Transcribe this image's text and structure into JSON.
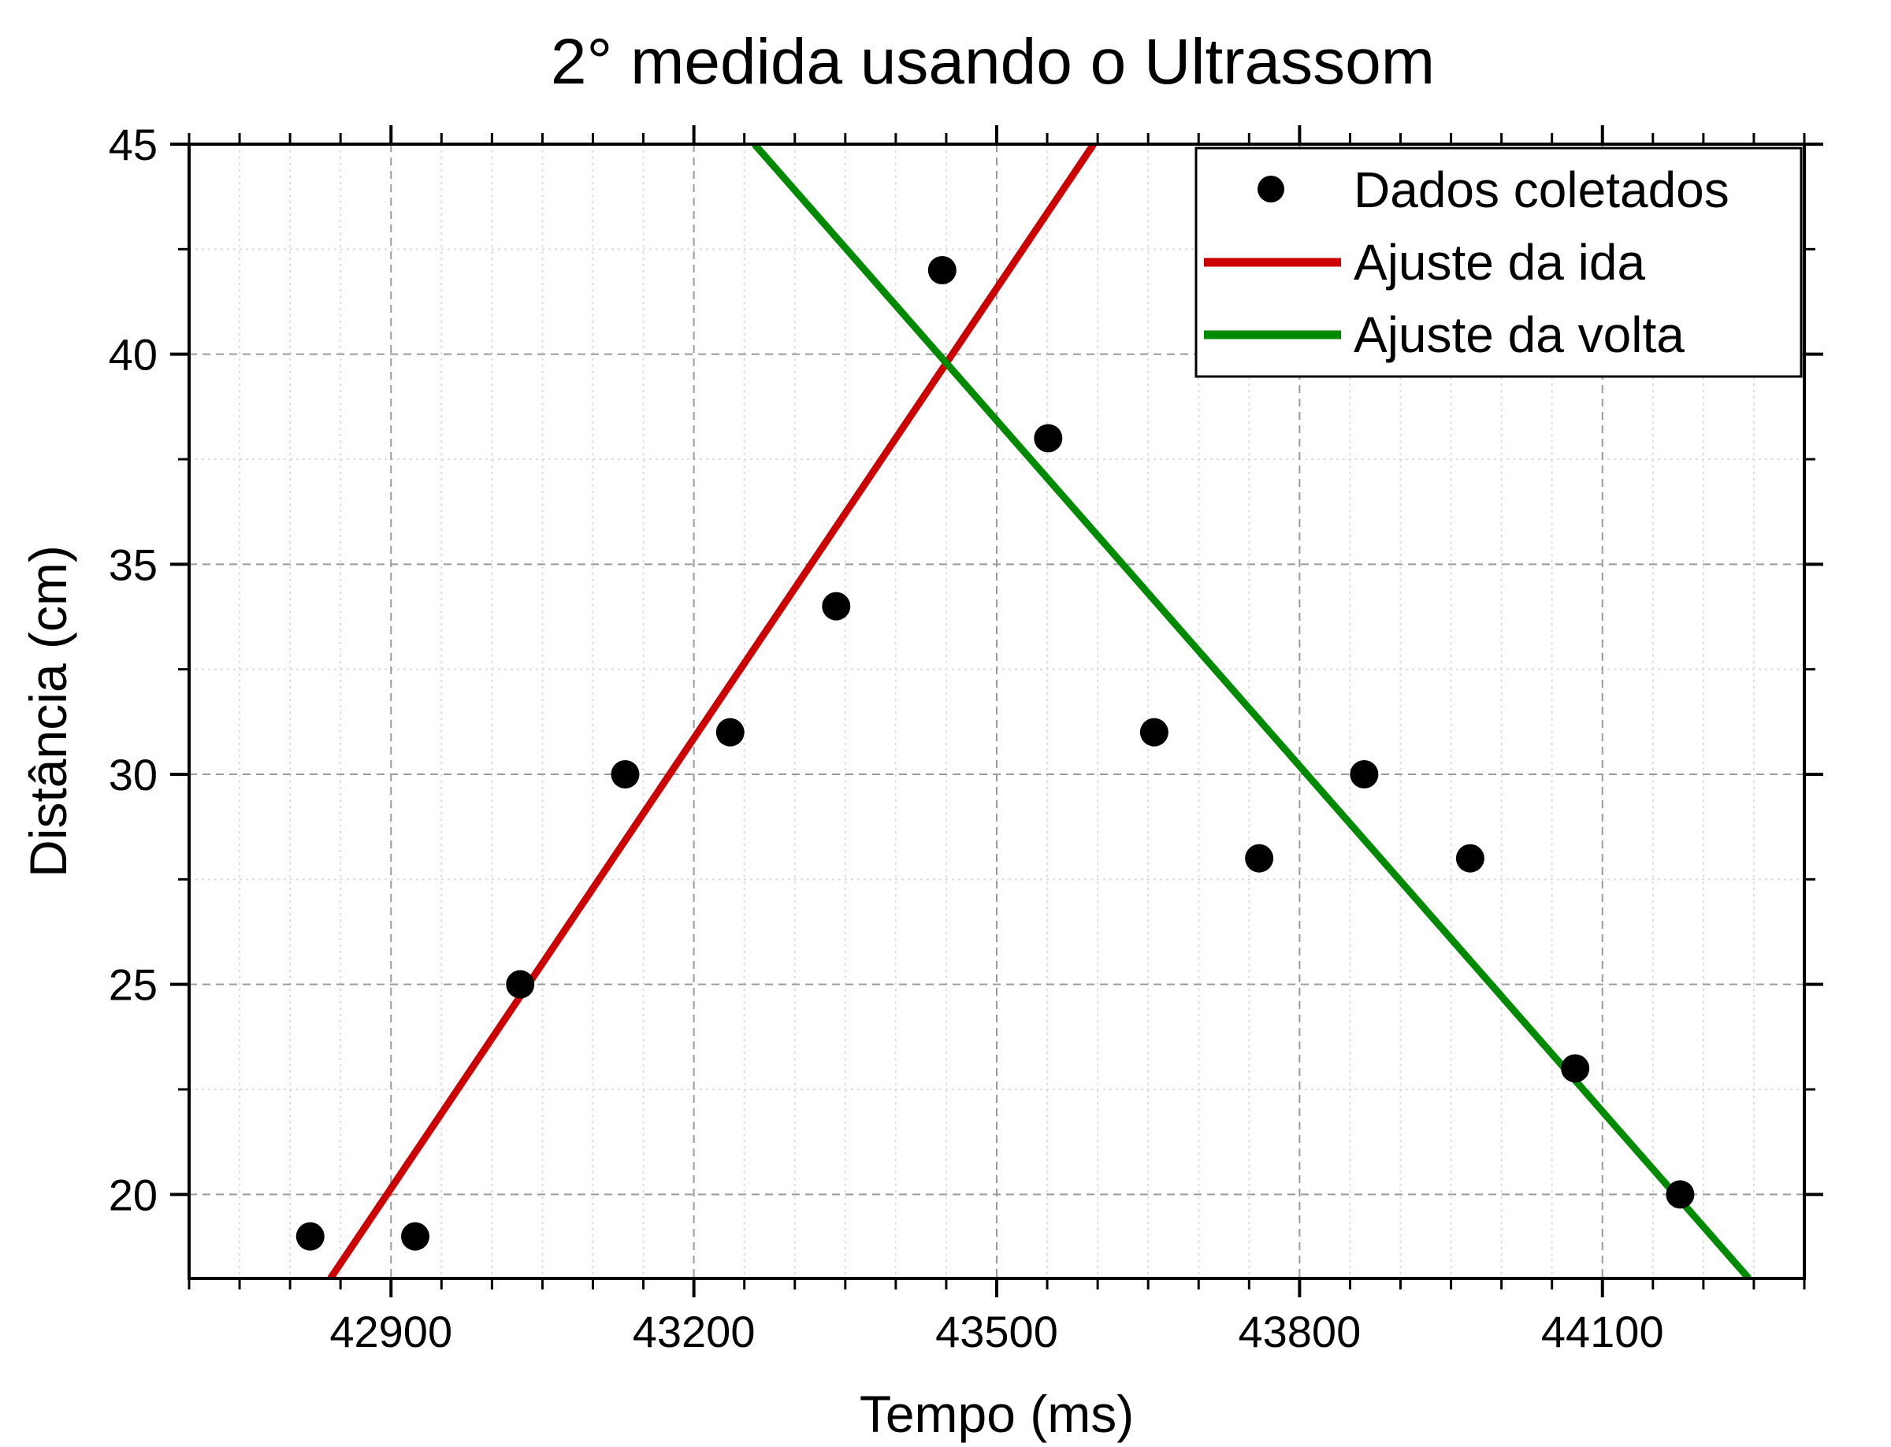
{
  "chart_data": {
    "type": "scatter",
    "title": "2° medida usando o Ultrassom",
    "xlabel": "Tempo (ms)",
    "ylabel": "Distância (cm)",
    "xlim": [
      42700,
      44300
    ],
    "ylim": [
      18,
      45
    ],
    "xticks": [
      42900,
      43200,
      43500,
      43800,
      44100
    ],
    "yticks": [
      20,
      25,
      30,
      35,
      40,
      45
    ],
    "x_minor_step": 50,
    "y_minor_step": 2.5,
    "grid": true,
    "legend_position": "top-right",
    "series": [
      {
        "name": "Dados coletados",
        "kind": "points",
        "color": "#000000",
        "x": [
          42820,
          42924,
          43028,
          43132,
          43236,
          43341,
          43446,
          43551,
          43656,
          43760,
          43864,
          43969,
          44073,
          44177
        ],
        "y": [
          19,
          19,
          25,
          30,
          31,
          34,
          42,
          38,
          31,
          28,
          30,
          28,
          23,
          20
        ]
      },
      {
        "name": "Ajuste da ida",
        "kind": "line",
        "color": "#cc0000",
        "x": [
          42840,
          43596
        ],
        "y": [
          18,
          45
        ]
      },
      {
        "name": "Ajuste da volta",
        "kind": "line",
        "color": "#008a00",
        "x": [
          43260,
          44245
        ],
        "y": [
          45,
          18
        ]
      }
    ]
  }
}
